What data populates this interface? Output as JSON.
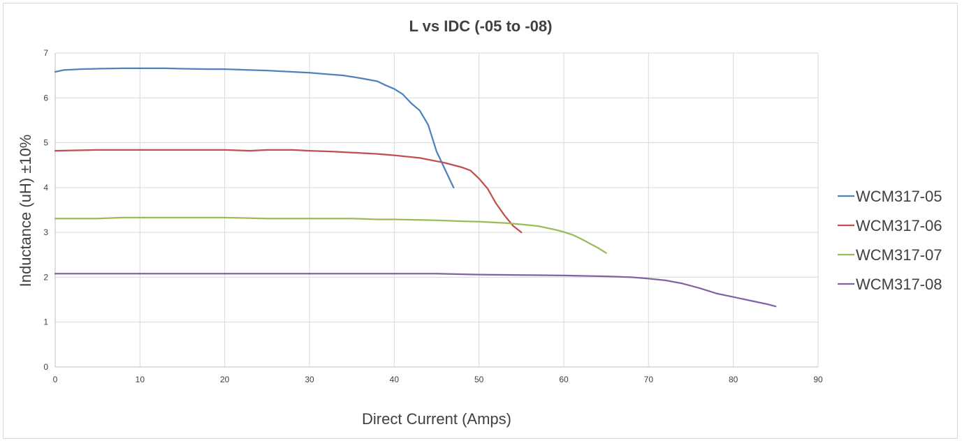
{
  "chart_data": {
    "type": "line",
    "title": "L vs IDC (-05 to -08)",
    "xlabel": "Direct Current (Amps)",
    "ylabel": "Inductance (uH) ±10%",
    "xlim": [
      0,
      90
    ],
    "ylim": [
      0,
      7
    ],
    "x_ticks": [
      0,
      10,
      20,
      30,
      40,
      50,
      60,
      70,
      80,
      90
    ],
    "y_ticks": [
      0,
      1,
      2,
      3,
      4,
      5,
      6,
      7
    ],
    "grid": "vertical and horizontal major gridlines",
    "legend_position": "right",
    "series": [
      {
        "name": "WCM317-05",
        "color": "#4f81bd",
        "points": [
          [
            0,
            6.58
          ],
          [
            0.5,
            6.6
          ],
          [
            1,
            6.62
          ],
          [
            3,
            6.64
          ],
          [
            5,
            6.65
          ],
          [
            8,
            6.66
          ],
          [
            10,
            6.66
          ],
          [
            13,
            6.66
          ],
          [
            15,
            6.65
          ],
          [
            18,
            6.64
          ],
          [
            20,
            6.64
          ],
          [
            23,
            6.62
          ],
          [
            25,
            6.61
          ],
          [
            28,
            6.58
          ],
          [
            30,
            6.56
          ],
          [
            32,
            6.53
          ],
          [
            34,
            6.5
          ],
          [
            36,
            6.44
          ],
          [
            38,
            6.37
          ],
          [
            39,
            6.28
          ],
          [
            40,
            6.2
          ],
          [
            41,
            6.08
          ],
          [
            42,
            5.88
          ],
          [
            43,
            5.72
          ],
          [
            44,
            5.4
          ],
          [
            45,
            4.8
          ],
          [
            46,
            4.4
          ],
          [
            47,
            4.0
          ]
        ]
      },
      {
        "name": "WCM317-06",
        "color": "#c0504d",
        "points": [
          [
            0,
            4.82
          ],
          [
            5,
            4.84
          ],
          [
            10,
            4.84
          ],
          [
            15,
            4.84
          ],
          [
            20,
            4.84
          ],
          [
            23,
            4.82
          ],
          [
            25,
            4.84
          ],
          [
            28,
            4.84
          ],
          [
            30,
            4.82
          ],
          [
            33,
            4.8
          ],
          [
            35,
            4.78
          ],
          [
            38,
            4.75
          ],
          [
            40,
            4.72
          ],
          [
            43,
            4.66
          ],
          [
            46,
            4.55
          ],
          [
            48,
            4.45
          ],
          [
            49,
            4.38
          ],
          [
            50,
            4.2
          ],
          [
            51,
            3.98
          ],
          [
            52,
            3.65
          ],
          [
            53,
            3.38
          ],
          [
            54,
            3.15
          ],
          [
            55,
            3.0
          ]
        ]
      },
      {
        "name": "WCM317-07",
        "color": "#9bbb59",
        "points": [
          [
            0,
            3.31
          ],
          [
            5,
            3.31
          ],
          [
            8,
            3.33
          ],
          [
            10,
            3.33
          ],
          [
            15,
            3.33
          ],
          [
            20,
            3.33
          ],
          [
            25,
            3.31
          ],
          [
            30,
            3.31
          ],
          [
            35,
            3.31
          ],
          [
            38,
            3.29
          ],
          [
            40,
            3.29
          ],
          [
            45,
            3.27
          ],
          [
            48,
            3.25
          ],
          [
            50,
            3.24
          ],
          [
            53,
            3.21
          ],
          [
            55,
            3.18
          ],
          [
            57,
            3.14
          ],
          [
            59,
            3.06
          ],
          [
            60,
            3.01
          ],
          [
            61,
            2.95
          ],
          [
            62,
            2.86
          ],
          [
            63,
            2.76
          ],
          [
            64,
            2.66
          ],
          [
            65,
            2.54
          ]
        ]
      },
      {
        "name": "WCM317-08",
        "color": "#8064a2",
        "points": [
          [
            0,
            2.08
          ],
          [
            10,
            2.08
          ],
          [
            20,
            2.08
          ],
          [
            30,
            2.08
          ],
          [
            40,
            2.08
          ],
          [
            45,
            2.08
          ],
          [
            50,
            2.06
          ],
          [
            55,
            2.05
          ],
          [
            60,
            2.04
          ],
          [
            65,
            2.02
          ],
          [
            68,
            2.0
          ],
          [
            70,
            1.97
          ],
          [
            72,
            1.93
          ],
          [
            74,
            1.86
          ],
          [
            76,
            1.76
          ],
          [
            78,
            1.64
          ],
          [
            80,
            1.56
          ],
          [
            82,
            1.48
          ],
          [
            84,
            1.4
          ],
          [
            85,
            1.35
          ]
        ]
      }
    ]
  }
}
